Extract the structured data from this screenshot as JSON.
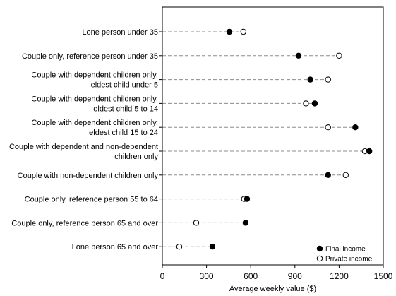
{
  "chart_data": {
    "type": "scatter",
    "categories": [
      [
        "Lone person under 35"
      ],
      [
        "Couple only, reference person under 35"
      ],
      [
        "Couple with dependent children only,",
        "eldest child under 5"
      ],
      [
        "Couple with dependent children only,",
        "eldest child 5 to 14"
      ],
      [
        "Couple with dependent children only,",
        "eldest child 15 to 24"
      ],
      [
        "Couple with dependent and non-dependent",
        "children only"
      ],
      [
        "Couple with non-dependent children only"
      ],
      [
        "Couple only, reference person 55 to 64"
      ],
      [
        "Couple only, reference person 65 and over"
      ],
      [
        "Lone person 65 and over"
      ]
    ],
    "series": [
      {
        "name": "Final income",
        "marker": "filled",
        "values": [
          455,
          925,
          1005,
          1035,
          1310,
          1405,
          1125,
          575,
          565,
          340
        ]
      },
      {
        "name": "Private income",
        "marker": "open",
        "values": [
          550,
          1200,
          1125,
          975,
          1125,
          1375,
          1245,
          555,
          230,
          115
        ]
      }
    ],
    "xlabel": "Average weekly value ($)",
    "xlim": [
      0,
      1500
    ],
    "xticks": [
      0,
      300,
      600,
      900,
      1200,
      1500
    ],
    "legend_position": "bottom-right",
    "grid": false
  }
}
